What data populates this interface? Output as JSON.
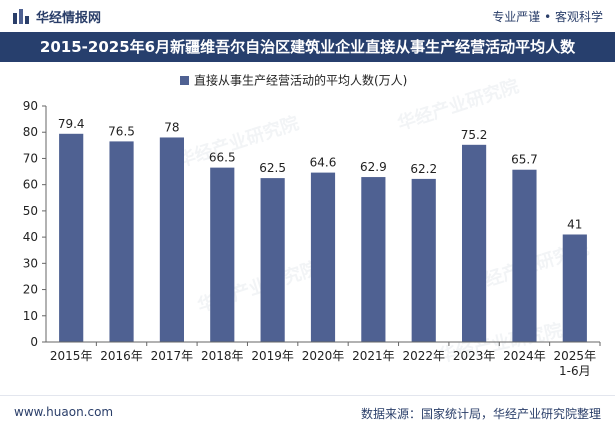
{
  "header": {
    "brand": "华经情报网",
    "tagline": "专业严谨 • 客观科学",
    "title": "2015-2025年6月新疆维吾尔自治区建筑业企业直接从事生产经营活动平均人数"
  },
  "footer": {
    "site": "www.huaon.com",
    "source": "数据来源：国家统计局，华经产业研究院整理"
  },
  "watermark": "华经产业研究院",
  "colors": {
    "bar": "#4f6192",
    "title_bg": "#273f6d",
    "text": "#2a3e69"
  },
  "chart_data": {
    "type": "bar",
    "categories": [
      "2015年",
      "2016年",
      "2017年",
      "2018年",
      "2019年",
      "2020年",
      "2021年",
      "2022年",
      "2023年",
      "2024年",
      "2025年\n1-6月"
    ],
    "series": [
      {
        "name": "直接从事生产经营活动的平均人数(万人)",
        "values": [
          79.4,
          76.5,
          78,
          66.5,
          62.5,
          64.6,
          62.9,
          62.2,
          75.2,
          65.7,
          41
        ]
      }
    ],
    "ylim": [
      0,
      90
    ],
    "yticks": [
      0,
      10,
      20,
      30,
      40,
      50,
      60,
      70,
      80,
      90
    ],
    "legend": "top-center",
    "grid": false
  }
}
